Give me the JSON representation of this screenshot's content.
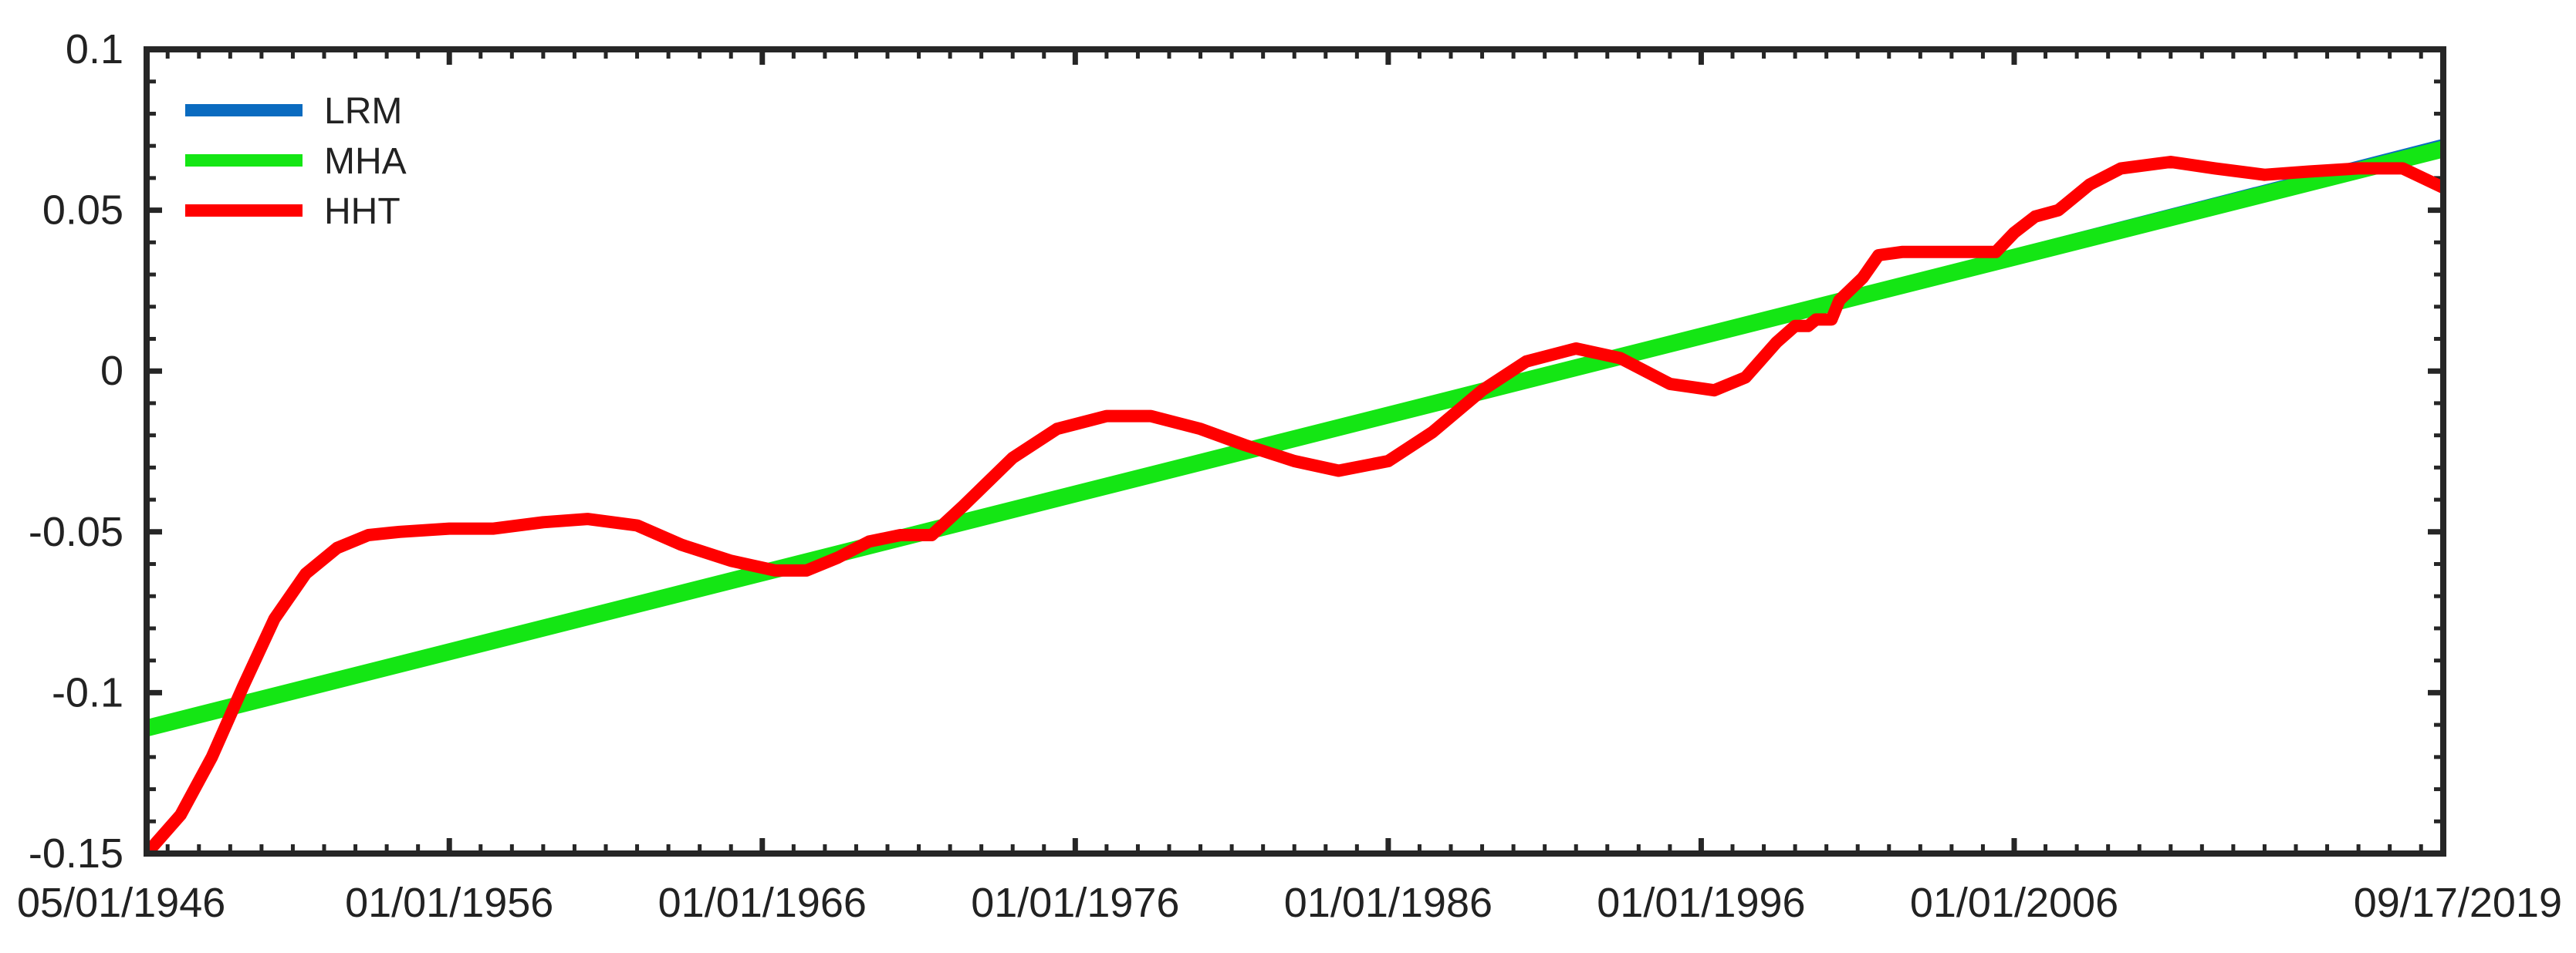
{
  "chart_data": {
    "type": "line",
    "title": "",
    "xlabel": "",
    "ylabel": "",
    "x_range": [
      "1946-05-01",
      "2019-09-17"
    ],
    "ylim": [
      -0.15,
      0.1
    ],
    "x_ticks": [
      {
        "date": "1946-05-01",
        "label": "05/01/1946"
      },
      {
        "date": "1956-01-01",
        "label": "01/01/1956"
      },
      {
        "date": "1966-01-01",
        "label": "01/01/1966"
      },
      {
        "date": "1976-01-01",
        "label": "01/01/1976"
      },
      {
        "date": "1986-01-01",
        "label": "01/01/1986"
      },
      {
        "date": "1996-01-01",
        "label": "01/01/1996"
      },
      {
        "date": "2006-01-01",
        "label": "01/01/2006"
      },
      {
        "date": "2019-09-17",
        "label": "09/17/2019"
      }
    ],
    "y_ticks": [
      {
        "value": 0.1,
        "label": "0.1"
      },
      {
        "value": 0.05,
        "label": "0.05"
      },
      {
        "value": 0,
        "label": "0"
      },
      {
        "value": -0.05,
        "label": "-0.05"
      },
      {
        "value": -0.1,
        "label": "-0.1"
      },
      {
        "value": -0.15,
        "label": "-0.15"
      }
    ],
    "grid": false,
    "legend": {
      "position": "top-left",
      "box": false
    },
    "series": [
      {
        "name": "LRM",
        "color": "#0a6bc0",
        "points": [
          [
            "1946-05-01",
            -0.112
          ],
          [
            "2019-09-17",
            0.071
          ]
        ]
      },
      {
        "name": "MHA",
        "color": "#14e614",
        "points": [
          [
            "1946-05-01",
            -0.111
          ],
          [
            "2019-09-17",
            0.069
          ]
        ]
      },
      {
        "name": "HHT",
        "color": "#ff0000",
        "points": [
          [
            "1946-05-01",
            -0.15
          ],
          [
            "1947-06-01",
            -0.138
          ],
          [
            "1948-06-01",
            -0.12
          ],
          [
            "1949-06-01",
            -0.098
          ],
          [
            "1950-06-01",
            -0.077
          ],
          [
            "1951-06-01",
            -0.063
          ],
          [
            "1952-06-01",
            -0.055
          ],
          [
            "1953-06-01",
            -0.051
          ],
          [
            "1954-06-01",
            -0.05
          ],
          [
            "1956-01-01",
            -0.049
          ],
          [
            "1957-06-01",
            -0.049
          ],
          [
            "1959-01-01",
            -0.047
          ],
          [
            "1960-06-01",
            -0.046
          ],
          [
            "1962-01-01",
            -0.048
          ],
          [
            "1963-06-01",
            -0.054
          ],
          [
            "1965-01-01",
            -0.059
          ],
          [
            "1966-06-01",
            -0.062
          ],
          [
            "1967-06-01",
            -0.062
          ],
          [
            "1968-06-01",
            -0.058
          ],
          [
            "1969-06-01",
            -0.053
          ],
          [
            "1970-06-01",
            -0.051
          ],
          [
            "1971-06-01",
            -0.051
          ],
          [
            "1972-06-01",
            -0.042
          ],
          [
            "1974-01-01",
            -0.027
          ],
          [
            "1975-06-01",
            -0.018
          ],
          [
            "1977-01-01",
            -0.014
          ],
          [
            "1978-06-01",
            -0.014
          ],
          [
            "1980-01-01",
            -0.018
          ],
          [
            "1981-06-01",
            -0.023
          ],
          [
            "1983-01-01",
            -0.028
          ],
          [
            "1984-06-01",
            -0.031
          ],
          [
            "1986-01-01",
            -0.028
          ],
          [
            "1987-06-01",
            -0.019
          ],
          [
            "1989-01-01",
            -0.006
          ],
          [
            "1990-06-01",
            0.003
          ],
          [
            "1992-01-01",
            0.007
          ],
          [
            "1993-06-01",
            0.004
          ],
          [
            "1995-01-01",
            -0.004
          ],
          [
            "1996-06-01",
            -0.006
          ],
          [
            "1997-06-01",
            -0.002
          ],
          [
            "1998-06-01",
            0.009
          ],
          [
            "1999-01-01",
            0.014
          ],
          [
            "1999-06-01",
            0.014
          ],
          [
            "1999-09-01",
            0.016
          ],
          [
            "2000-03-01",
            0.016
          ],
          [
            "2000-06-01",
            0.022
          ],
          [
            "2001-03-01",
            0.029
          ],
          [
            "2001-09-01",
            0.036
          ],
          [
            "2002-06-01",
            0.037
          ],
          [
            "2005-06-01",
            0.037
          ],
          [
            "2006-01-01",
            0.043
          ],
          [
            "2006-09-01",
            0.048
          ],
          [
            "2007-06-01",
            0.05
          ],
          [
            "2008-06-01",
            0.058
          ],
          [
            "2009-06-01",
            0.063
          ],
          [
            "2011-01-01",
            0.065
          ],
          [
            "2012-06-01",
            0.063
          ],
          [
            "2014-01-01",
            0.061
          ],
          [
            "2015-06-01",
            0.062
          ],
          [
            "2017-01-01",
            0.063
          ],
          [
            "2018-06-01",
            0.063
          ],
          [
            "2019-09-17",
            0.057
          ]
        ]
      }
    ]
  }
}
